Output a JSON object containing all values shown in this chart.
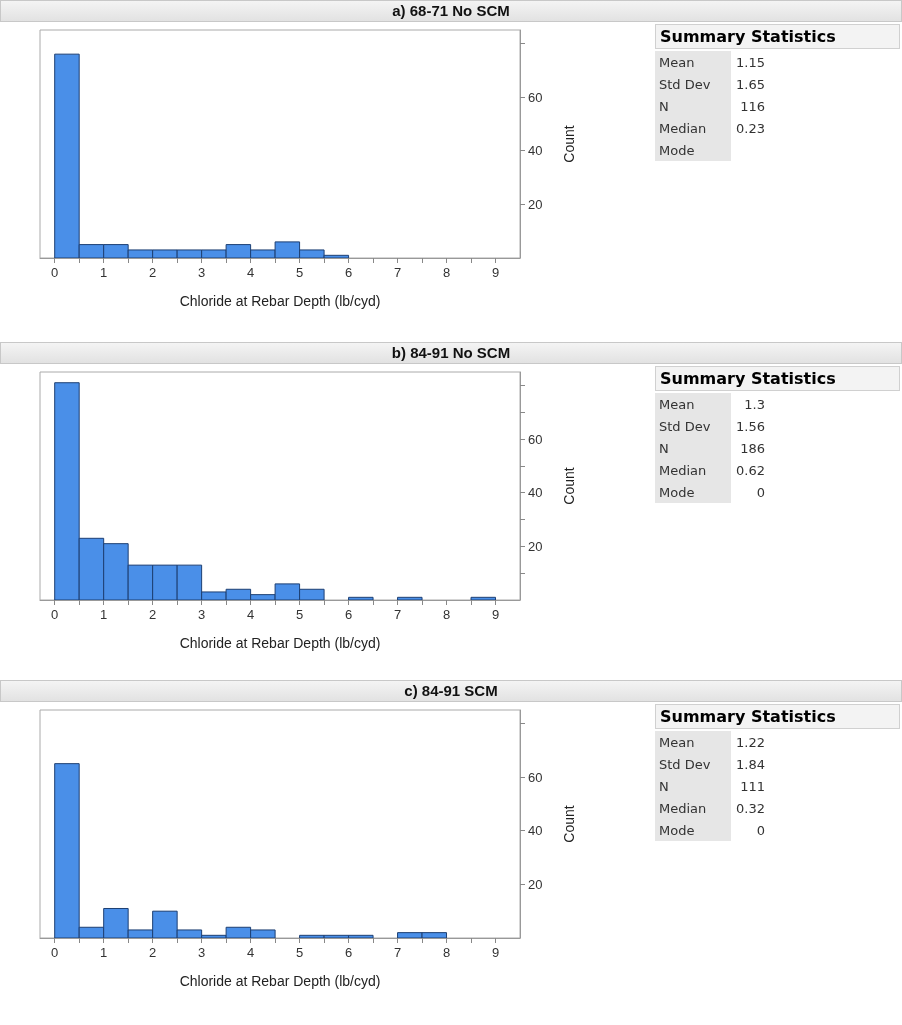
{
  "chart_data": [
    {
      "type": "histogram",
      "title": "a) 68-71 No SCM",
      "xlabel": "Chloride at Rebar Depth (lb/cyd)",
      "ylabel": "Count",
      "color": "#4a8fe8",
      "grid": false,
      "bins": [
        0,
        0.5,
        1,
        1.5,
        2,
        2.5,
        3,
        3.5,
        4,
        4.5,
        5,
        5.5,
        6
      ],
      "values": [
        76,
        5,
        5,
        3,
        3,
        3,
        3,
        5,
        3,
        6,
        3,
        1
      ],
      "xlim": [
        -0.3,
        9.5
      ],
      "xticks": [
        0,
        {
          "value": 0.5,
          "label": null
        },
        1,
        {
          "value": 1.5,
          "label": null
        },
        2,
        {
          "value": 2.5,
          "label": null
        },
        3,
        {
          "value": 3.5,
          "label": null
        },
        4,
        {
          "value": 4.5,
          "label": null
        },
        5,
        {
          "value": 5.5,
          "label": null
        },
        6,
        {
          "value": 6.5,
          "label": null
        },
        7,
        {
          "value": 7.5,
          "label": null
        },
        8,
        {
          "value": 8.5,
          "label": null
        },
        9
      ],
      "ylim": [
        0,
        85
      ],
      "yticks": [
        20,
        40,
        60,
        {
          "value": 80,
          "label": null
        }
      ]
    },
    {
      "type": "other",
      "title": "Summary Statistics",
      "annotations": [
        "Mean",
        "1.15",
        "Std Dev",
        "1.65",
        "N",
        "116",
        "Median",
        "0.23",
        "Mode"
      ]
    },
    {
      "type": "histogram",
      "title": "b) 84-91 No SCM",
      "xlabel": "Chloride at Rebar Depth (lb/cyd)",
      "ylabel": "Count",
      "color": "#4a8fe8",
      "grid": false,
      "bins": [
        0,
        0.5,
        1,
        1.5,
        2,
        2.5,
        3,
        3.5,
        4,
        4.5,
        5,
        5.5,
        6,
        6.5,
        7,
        7.5,
        8,
        8.5,
        9
      ],
      "values": [
        81,
        23,
        21,
        13,
        13,
        13,
        3,
        4,
        2,
        6,
        4,
        0,
        1,
        0,
        1,
        0,
        0,
        1
      ],
      "xlim": [
        -0.3,
        9.5
      ],
      "xticks": [
        0,
        {
          "value": 0.5,
          "label": null
        },
        1,
        {
          "value": 1.5,
          "label": null
        },
        2,
        {
          "value": 2.5,
          "label": null
        },
        3,
        {
          "value": 3.5,
          "label": null
        },
        4,
        {
          "value": 4.5,
          "label": null
        },
        5,
        {
          "value": 5.5,
          "label": null
        },
        6,
        {
          "value": 6.5,
          "label": null
        },
        7,
        {
          "value": 7.5,
          "label": null
        },
        8,
        {
          "value": 8.5,
          "label": null
        },
        9
      ],
      "ylim": [
        0,
        85
      ],
      "yticks": [
        {
          "value": 10,
          "label": null
        },
        20,
        {
          "value": 30,
          "label": null
        },
        40,
        {
          "value": 50,
          "label": null
        },
        60,
        {
          "value": 70,
          "label": null
        },
        {
          "value": 80,
          "label": null
        }
      ]
    },
    {
      "type": "other",
      "title": "Summary Statistics",
      "annotations": [
        "Mean",
        "1.3",
        "Std Dev",
        "1.56",
        "N",
        "186",
        "Median",
        "0.62",
        "Mode",
        "0"
      ]
    },
    {
      "type": "histogram",
      "title": "c) 84-91 SCM",
      "xlabel": "Chloride at Rebar Depth (lb/cyd)",
      "ylabel": "Count",
      "color": "#4a8fe8",
      "grid": false,
      "bins": [
        0,
        0.5,
        1,
        1.5,
        2,
        2.5,
        3,
        3.5,
        4,
        4.5,
        5,
        5.5,
        6,
        6.5,
        7,
        7.5,
        8,
        8.5,
        9
      ],
      "values": [
        65,
        4,
        11,
        3,
        10,
        3,
        1,
        4,
        3,
        0,
        1,
        1,
        1,
        0,
        2,
        2,
        0,
        0
      ],
      "xlim": [
        -0.3,
        9.5
      ],
      "xticks": [
        0,
        {
          "value": 0.5,
          "label": null
        },
        1,
        {
          "value": 1.5,
          "label": null
        },
        2,
        {
          "value": 2.5,
          "label": null
        },
        3,
        {
          "value": 3.5,
          "label": null
        },
        4,
        {
          "value": 4.5,
          "label": null
        },
        5,
        {
          "value": 5.5,
          "label": null
        },
        6,
        {
          "value": 6.5,
          "label": null
        },
        7,
        {
          "value": 7.5,
          "label": null
        },
        8,
        {
          "value": 8.5,
          "label": null
        },
        9
      ],
      "ylim": [
        0,
        85
      ],
      "yticks": [
        20,
        40,
        60,
        {
          "value": 80,
          "label": null
        }
      ]
    },
    {
      "type": "other",
      "title": "Summary Statistics",
      "annotations": [
        "Mean",
        "1.22",
        "Std Dev",
        "1.84",
        "N",
        "111",
        "Median",
        "0.32",
        "Mode",
        "0"
      ]
    }
  ]
}
